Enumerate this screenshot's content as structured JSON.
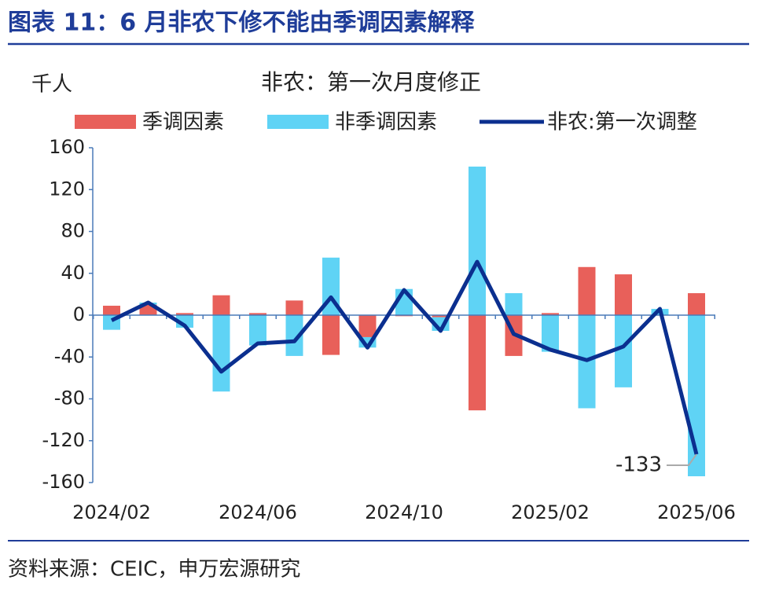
{
  "header": {
    "title": "图表 11：6 月非农下修不能由季调因素解释"
  },
  "chart_data": {
    "type": "stacked-bar-line",
    "title": "非农：第一次月度修正",
    "unit": "千人",
    "categories": [
      "2024/02",
      null,
      null,
      null,
      "2024/06",
      null,
      null,
      null,
      "2024/10",
      null,
      null,
      null,
      "2025/02",
      null,
      null,
      null,
      "2025/06"
    ],
    "series": [
      {
        "name": "季调因素",
        "color": "#e8605a",
        "kind": "bar",
        "values": [
          9,
          10,
          2,
          19,
          2,
          14,
          -38,
          -21,
          -1,
          -2,
          -91,
          -39,
          2,
          46,
          39,
          0,
          21
        ]
      },
      {
        "name": "非季调因素",
        "color": "#5fd3f5",
        "kind": "bar",
        "values": [
          -14,
          2,
          -12,
          -73,
          -29,
          -39,
          55,
          -10,
          25,
          -13,
          142,
          21,
          -35,
          -89,
          -69,
          6,
          -154
        ]
      },
      {
        "name": "非农:第一次调整",
        "color": "#0b2f8f",
        "kind": "line",
        "values": [
          -5,
          12,
          -10,
          -54,
          -27,
          -25,
          17,
          -31,
          24,
          -15,
          51,
          -18,
          -33,
          -43,
          -30,
          6,
          -133
        ]
      }
    ],
    "annotations": [
      {
        "text": "-133",
        "index": 16
      }
    ],
    "ylim": [
      -160,
      160
    ],
    "yticks": [
      -160,
      -120,
      -80,
      -40,
      0,
      40,
      80,
      120,
      160
    ]
  },
  "footer": {
    "source": "资料来源：CEIC，申万宏源研究"
  }
}
